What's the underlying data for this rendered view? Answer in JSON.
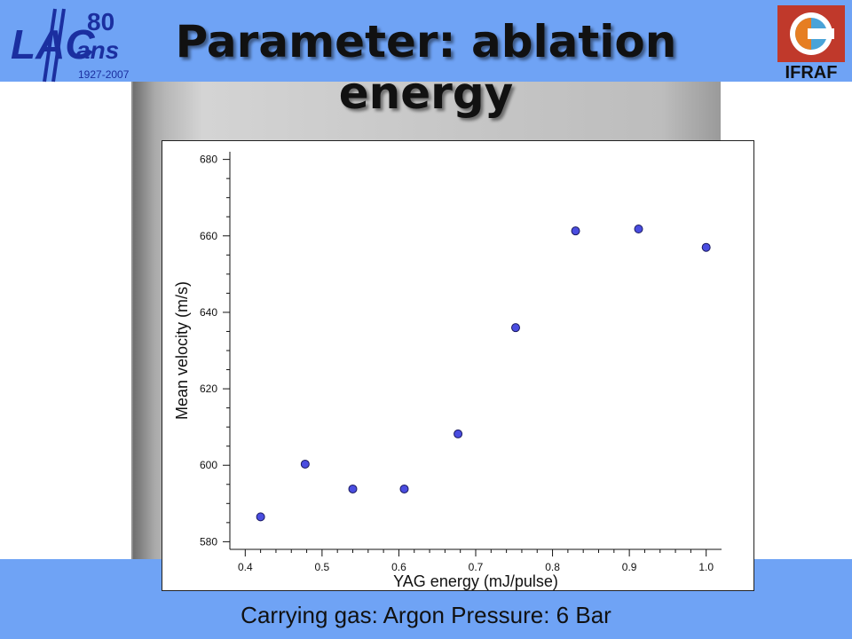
{
  "title": "Parameter: ablation energy",
  "footer": "Carrying gas: Argon Pressure: 6 Bar",
  "logo_left": {
    "text_main": "LAC",
    "text_years": "80",
    "text_ans": "ans",
    "text_dates": "1927-2007"
  },
  "logo_right": {
    "text": "IFRAF"
  },
  "colors": {
    "band": "#6fa3f5",
    "marker": "#4a4de0"
  },
  "chart_data": {
    "type": "scatter",
    "xlabel": "YAG energy (mJ/pulse)",
    "ylabel": "Mean velocity (m/s)",
    "xlim": [
      0.38,
      1.02
    ],
    "ylim": [
      578,
      682
    ],
    "xticks": [
      "0.4",
      "0.5",
      "0.6",
      "0.7",
      "0.8",
      "0.9",
      "1.0"
    ],
    "yticks": [
      "580",
      "600",
      "620",
      "640",
      "660",
      "680"
    ],
    "x": [
      0.42,
      0.478,
      0.54,
      0.607,
      0.677,
      0.752,
      0.83,
      0.912,
      1.0
    ],
    "y": [
      586.5,
      600.3,
      593.8,
      593.8,
      608.2,
      636.0,
      661.3,
      661.8,
      657.0
    ]
  }
}
